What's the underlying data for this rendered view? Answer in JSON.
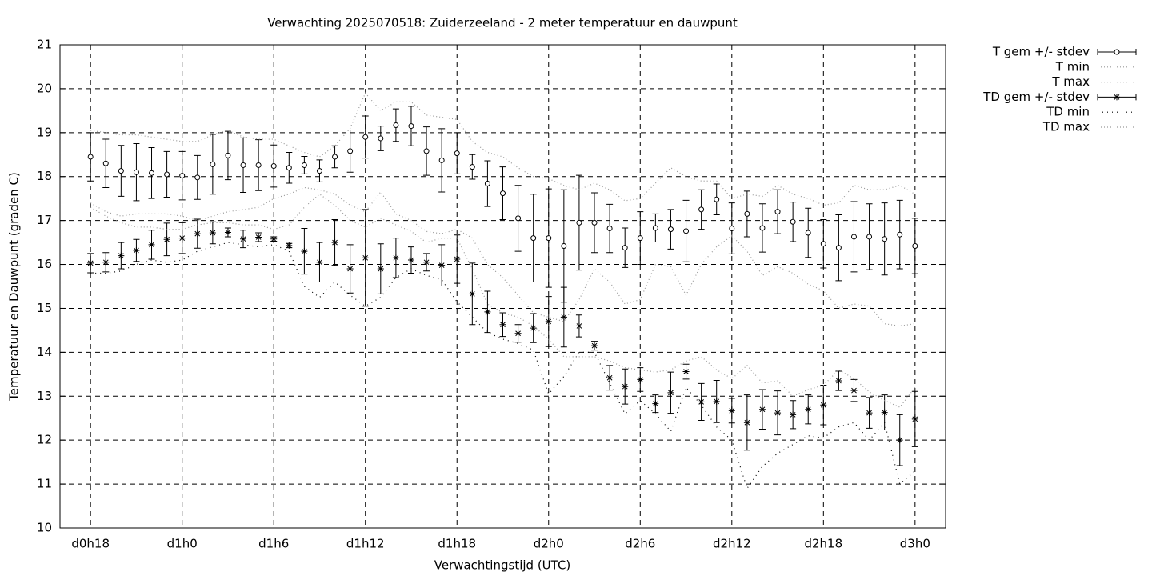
{
  "chart_data": {
    "type": "errorline",
    "title": "Verwachting 2025070518: Zuiderzeeland - 2 meter temperatuur en dauwpunt",
    "xlabel": "Verwachtingstijd (UTC)",
    "ylabel": "Temperatuur en Dauwpunt (graden C)",
    "categories": [
      "d0h18",
      null,
      null,
      null,
      null,
      null,
      "d1h0",
      null,
      null,
      null,
      null,
      null,
      "d1h6",
      null,
      null,
      null,
      null,
      null,
      "d1h12",
      null,
      null,
      null,
      null,
      null,
      "d1h18",
      null,
      null,
      null,
      null,
      null,
      "d2h0",
      null,
      null,
      null,
      null,
      null,
      "d2h6",
      null,
      null,
      null,
      null,
      null,
      "d2h12",
      null,
      null,
      null,
      null,
      null,
      "d2h18",
      null,
      null,
      null,
      null,
      null,
      "d3h0"
    ],
    "ylim": [
      10,
      21
    ],
    "yticks": [
      10,
      11,
      12,
      13,
      14,
      15,
      16,
      17,
      18,
      19,
      20,
      21
    ],
    "grid": true,
    "legend": "outside-top-right",
    "series": [
      {
        "name": "T gem +/- stdev",
        "color": "#000000",
        "marker": "circle",
        "values": [
          18.45,
          18.3,
          18.13,
          18.1,
          18.08,
          18.05,
          18.02,
          17.98,
          18.28,
          18.48,
          18.26,
          18.26,
          18.24,
          18.2,
          18.26,
          18.13,
          18.45,
          18.58,
          18.9,
          18.87,
          19.17,
          19.15,
          18.58,
          18.37,
          18.53,
          18.22,
          17.84,
          17.62,
          17.05,
          16.6,
          16.6,
          16.42,
          16.95,
          16.95,
          16.82,
          16.38,
          16.6,
          16.83,
          16.8,
          16.76,
          17.25,
          17.48,
          16.82,
          17.15,
          16.83,
          17.2,
          16.97,
          16.72,
          16.47,
          16.38,
          16.63,
          16.63,
          16.58,
          16.68,
          16.42
        ],
        "errors": [
          0.55,
          0.55,
          0.58,
          0.65,
          0.58,
          0.52,
          0.55,
          0.5,
          0.68,
          0.55,
          0.62,
          0.58,
          0.48,
          0.35,
          0.2,
          0.25,
          0.25,
          0.48,
          0.48,
          0.28,
          0.37,
          0.45,
          0.55,
          0.72,
          0.47,
          0.28,
          0.52,
          0.6,
          0.75,
          1.0,
          1.12,
          1.28,
          1.08,
          0.68,
          0.55,
          0.45,
          0.6,
          0.32,
          0.45,
          0.7,
          0.45,
          0.35,
          0.58,
          0.52,
          0.55,
          0.5,
          0.45,
          0.56,
          0.55,
          0.75,
          0.8,
          0.75,
          0.82,
          0.78,
          0.63
        ]
      },
      {
        "name": "T min",
        "color": "#999999",
        "values": [
          17.4,
          17.2,
          17.1,
          17.15,
          17.15,
          17.15,
          17.1,
          17.0,
          17.1,
          17.2,
          17.25,
          17.3,
          17.5,
          17.6,
          17.75,
          17.7,
          17.6,
          17.35,
          17.2,
          17.65,
          17.15,
          17.0,
          16.75,
          16.7,
          16.8,
          16.6,
          16.0,
          15.7,
          15.3,
          14.9,
          14.8,
          14.7,
          15.2,
          15.9,
          15.6,
          15.1,
          15.2,
          16.0,
          15.95,
          15.3,
          16.0,
          16.4,
          16.65,
          16.3,
          15.75,
          15.95,
          15.8,
          15.55,
          15.4,
          15.0,
          15.1,
          15.05,
          14.65,
          14.6,
          14.65
        ]
      },
      {
        "name": "T max",
        "color": "#999999",
        "values": [
          19.05,
          19.0,
          18.95,
          18.95,
          18.9,
          18.85,
          18.8,
          18.8,
          18.95,
          19.05,
          18.9,
          18.85,
          18.85,
          18.7,
          18.55,
          18.45,
          18.7,
          19.1,
          19.9,
          19.5,
          19.7,
          19.7,
          19.4,
          19.35,
          19.3,
          18.8,
          18.55,
          18.45,
          18.2,
          18.0,
          17.95,
          17.8,
          17.7,
          17.85,
          17.7,
          17.45,
          17.5,
          17.85,
          18.2,
          18.0,
          17.9,
          17.9,
          17.5,
          17.6,
          17.55,
          17.8,
          17.6,
          17.5,
          17.35,
          17.4,
          17.8,
          17.7,
          17.7,
          17.8,
          17.6
        ]
      },
      {
        "name": "TD gem +/- stdev",
        "color": "#000000",
        "marker": "star",
        "values": [
          16.03,
          16.05,
          16.2,
          16.32,
          16.45,
          16.57,
          16.6,
          16.7,
          16.72,
          16.73,
          16.58,
          16.62,
          16.58,
          16.43,
          16.3,
          16.05,
          16.5,
          15.9,
          16.15,
          15.9,
          16.15,
          16.1,
          16.05,
          15.98,
          16.12,
          15.33,
          14.92,
          14.63,
          14.43,
          14.55,
          14.7,
          14.8,
          14.6,
          14.15,
          13.42,
          13.22,
          13.38,
          12.83,
          13.08,
          13.56,
          12.87,
          12.88,
          12.67,
          12.4,
          12.7,
          12.62,
          12.58,
          12.7,
          12.8,
          13.35,
          13.13,
          12.62,
          12.63,
          12.0,
          12.48
        ],
        "errors": [
          0.22,
          0.22,
          0.3,
          0.25,
          0.33,
          0.37,
          0.35,
          0.33,
          0.25,
          0.1,
          0.2,
          0.1,
          0.05,
          0.05,
          0.52,
          0.45,
          0.52,
          0.55,
          1.1,
          0.57,
          0.45,
          0.3,
          0.2,
          0.47,
          0.55,
          0.7,
          0.47,
          0.27,
          0.2,
          0.33,
          0.57,
          0.68,
          0.25,
          0.1,
          0.28,
          0.4,
          0.27,
          0.2,
          0.47,
          0.17,
          0.42,
          0.48,
          0.28,
          0.63,
          0.45,
          0.5,
          0.32,
          0.33,
          0.45,
          0.22,
          0.25,
          0.35,
          0.4,
          0.58,
          0.63
        ]
      },
      {
        "name": "TD min",
        "color": "#000000",
        "values": [
          15.8,
          15.8,
          15.85,
          16.0,
          16.1,
          16.05,
          16.1,
          16.3,
          16.4,
          16.5,
          16.45,
          16.4,
          16.45,
          16.3,
          15.5,
          15.25,
          15.6,
          15.3,
          15.05,
          15.25,
          15.7,
          15.9,
          15.75,
          15.65,
          15.15,
          14.8,
          14.45,
          14.3,
          14.2,
          14.05,
          13.05,
          13.45,
          14.0,
          14.0,
          13.3,
          12.6,
          12.9,
          12.6,
          12.2,
          13.2,
          12.8,
          12.3,
          12.0,
          10.9,
          11.4,
          11.7,
          11.9,
          12.1,
          12.05,
          12.3,
          12.4,
          12.0,
          12.4,
          11.0,
          11.3
        ]
      },
      {
        "name": "TD max",
        "color": "#999999",
        "values": [
          17.3,
          17.1,
          16.95,
          16.85,
          16.85,
          16.8,
          16.8,
          16.9,
          16.95,
          16.95,
          16.9,
          16.9,
          16.8,
          16.9,
          17.3,
          17.6,
          17.35,
          17.0,
          16.85,
          17.05,
          16.9,
          16.75,
          16.5,
          16.6,
          16.6,
          15.9,
          15.1,
          14.9,
          14.8,
          14.6,
          14.3,
          13.9,
          13.9,
          13.9,
          13.8,
          13.65,
          13.6,
          13.55,
          13.6,
          13.8,
          13.9,
          13.6,
          13.4,
          13.7,
          13.3,
          13.35,
          13.0,
          13.15,
          13.25,
          13.6,
          13.4,
          13.1,
          12.9,
          12.75,
          13.2
        ]
      }
    ]
  }
}
